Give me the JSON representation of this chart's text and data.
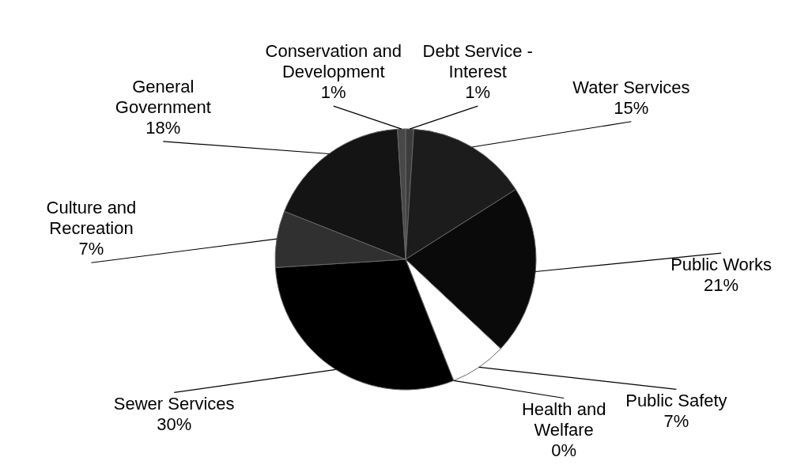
{
  "chart_data": {
    "type": "pie",
    "categories": [
      "Debt Service - Interest",
      "Water Services",
      "Public Works",
      "Public Safety",
      "Health and Welfare",
      "Sewer Services",
      "Culture and Recreation",
      "General Government",
      "Conservation and Development"
    ],
    "values": [
      1,
      15,
      21,
      7,
      0,
      30,
      7,
      18,
      1
    ],
    "value_labels": [
      "1%",
      "15%",
      "21%",
      "7%",
      "0%",
      "30%",
      "7%",
      "18%",
      "1%"
    ],
    "colors": [
      "#3c3c3c",
      "#1c1c1c",
      "#0a0a0a",
      "#ffffff",
      "#1e1e1e",
      "#000000",
      "#303030",
      "#141414",
      "#484848"
    ]
  }
}
